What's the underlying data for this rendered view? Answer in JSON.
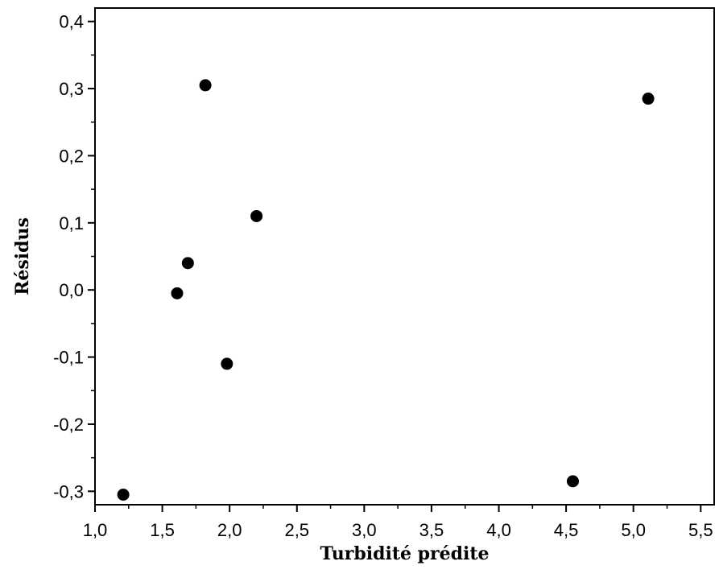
{
  "chart_data": {
    "type": "scatter",
    "title": "",
    "xlabel": "Turbidité prédite",
    "ylabel": "Résidus",
    "xlim": [
      1.0,
      5.6
    ],
    "ylim": [
      -0.32,
      0.42
    ],
    "x_ticks": [
      1.0,
      1.5,
      2.0,
      2.5,
      3.0,
      3.5,
      4.0,
      4.5,
      5.0,
      5.5
    ],
    "x_tick_labels": [
      "1,0",
      "1,5",
      "2,0",
      "2,5",
      "3,0",
      "3,5",
      "4,0",
      "4,5",
      "5,0",
      "5,5"
    ],
    "y_ticks": [
      -0.3,
      -0.2,
      -0.1,
      0.0,
      0.1,
      0.2,
      0.3,
      0.4
    ],
    "y_tick_labels": [
      "-0,3",
      "-0,2",
      "-0,1",
      "0,0",
      "0,1",
      "0,2",
      "0,3",
      "0,4"
    ],
    "grid": false,
    "legend": "none",
    "marker_color": "#000000",
    "points": [
      {
        "x": 1.21,
        "y": -0.305
      },
      {
        "x": 1.61,
        "y": -0.005
      },
      {
        "x": 1.69,
        "y": 0.04
      },
      {
        "x": 1.82,
        "y": 0.305
      },
      {
        "x": 1.98,
        "y": -0.11
      },
      {
        "x": 2.2,
        "y": 0.11
      },
      {
        "x": 4.55,
        "y": -0.285
      },
      {
        "x": 5.11,
        "y": 0.285
      }
    ]
  }
}
